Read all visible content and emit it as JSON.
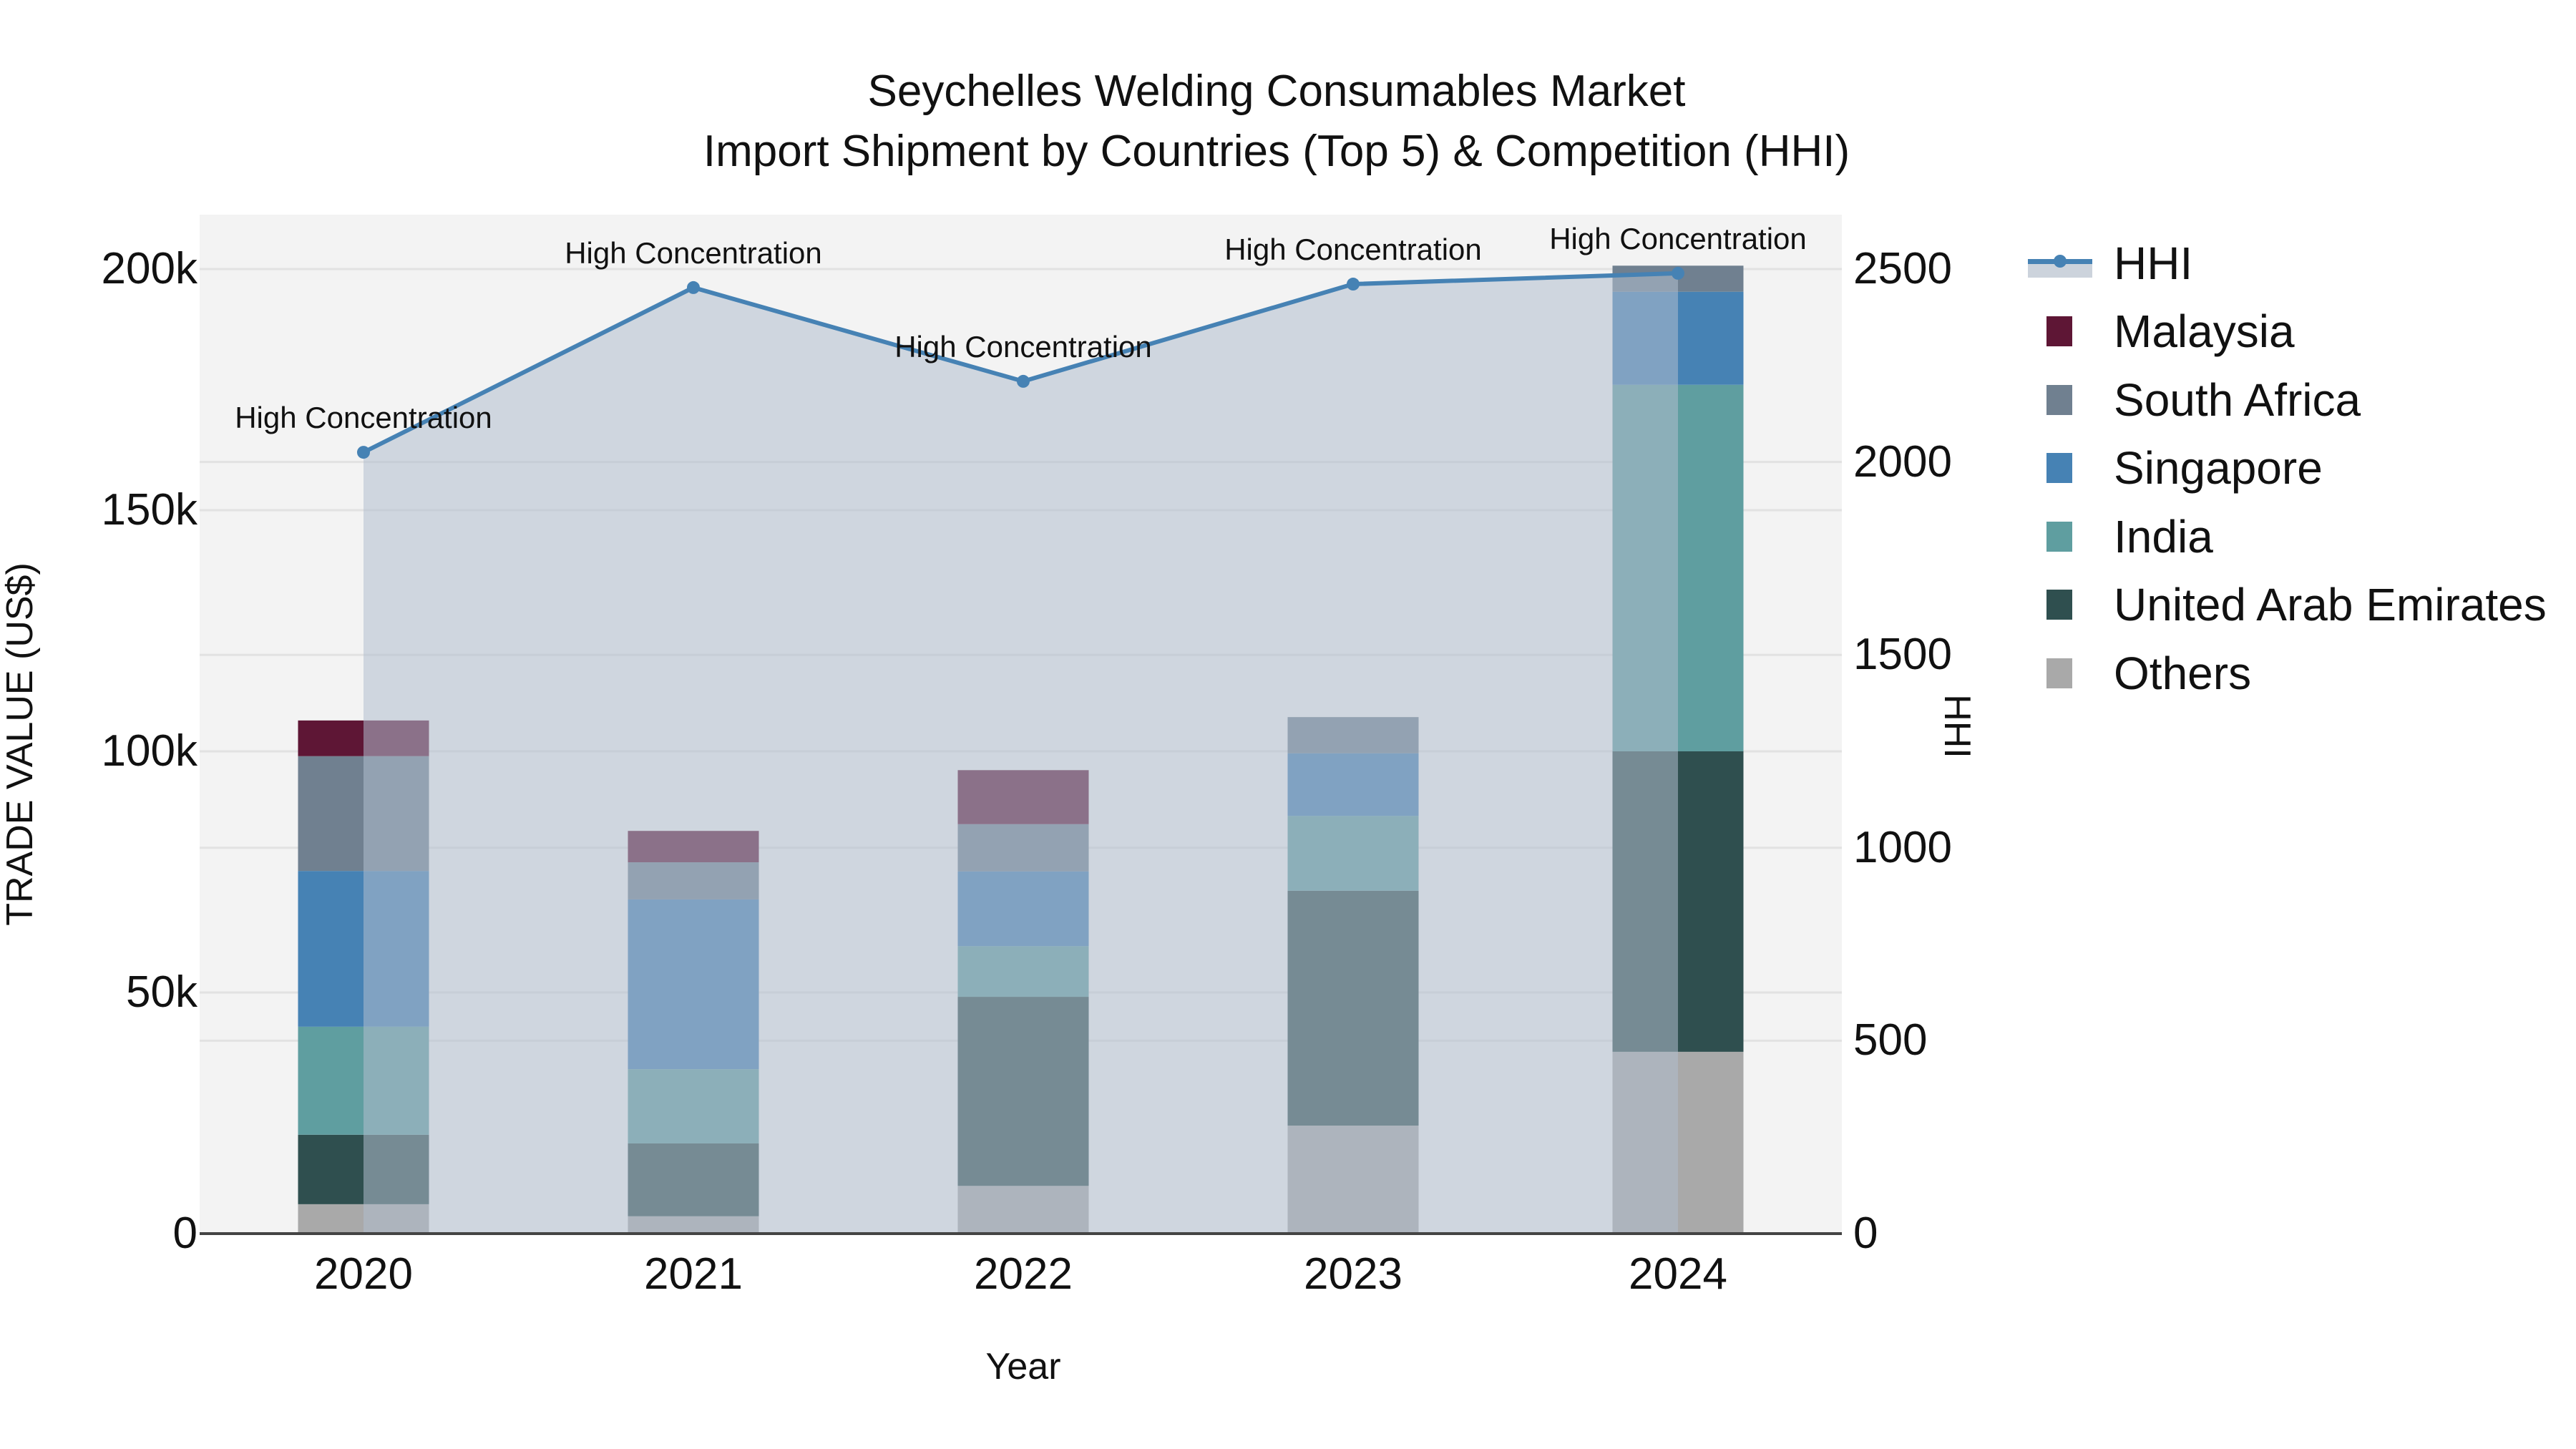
{
  "title": {
    "line1": "Seychelles Welding Consumables Market",
    "line2": "Import Shipment by Countries (Top 5) & Competition (HHI)"
  },
  "axes": {
    "x_label": "Year",
    "y_label": "TRADE VALUE (US$)",
    "y2_label": "HHI",
    "y_ticks": [
      "0",
      "50k",
      "100k",
      "150k",
      "200k"
    ],
    "y_tick_values": [
      0,
      50000,
      100000,
      150000,
      200000
    ],
    "y2_ticks": [
      "0",
      "500",
      "1000",
      "1500",
      "2000",
      "2500"
    ],
    "y2_tick_values": [
      0,
      500,
      1000,
      1500,
      2000,
      2500
    ],
    "x_ticks": [
      "2020",
      "2021",
      "2022",
      "2023",
      "2024"
    ]
  },
  "legend": {
    "items": [
      {
        "label": "HHI",
        "type": "line",
        "color": "#4682b4"
      },
      {
        "label": "Malaysia",
        "type": "bar",
        "color": "#5e1635"
      },
      {
        "label": "South Africa",
        "type": "bar",
        "color": "#708090"
      },
      {
        "label": "Singapore",
        "type": "bar",
        "color": "#4682b4"
      },
      {
        "label": "India",
        "type": "bar",
        "color": "#5f9ea0"
      },
      {
        "label": "United Arab Emirates",
        "type": "bar",
        "color": "#2f4f4f"
      },
      {
        "label": "Others",
        "type": "bar",
        "color": "#a9a9a9"
      }
    ]
  },
  "annotations": [
    {
      "year": "2020",
      "text": "High Concentration"
    },
    {
      "year": "2021",
      "text": "High Concentration"
    },
    {
      "year": "2022",
      "text": "High Concentration"
    },
    {
      "year": "2023",
      "text": "High Concentration"
    },
    {
      "year": "2024",
      "text": "High Concentration"
    }
  ],
  "colors": {
    "plot_bg": "#f3f3f3",
    "grid": "#e2e2e2",
    "hhi_line": "#4682b4",
    "hhi_fill": "rgba(176,190,205,0.55)",
    "axis_line": "#444444"
  },
  "chart_data": {
    "type": "bar",
    "subtype": "stacked bar with line overlay (secondary axis)",
    "title": "Seychelles Welding Consumables Market — Import Shipment by Countries (Top 5) & Competition (HHI)",
    "xlabel": "Year",
    "ylabel": "TRADE VALUE (US$)",
    "y2label": "HHI",
    "categories": [
      "2020",
      "2021",
      "2022",
      "2023",
      "2024"
    ],
    "ylim": [
      0,
      211000
    ],
    "y2lim": [
      0,
      2637
    ],
    "grid": true,
    "legend_position": "right",
    "stack_order_bottom_to_top": [
      "Others",
      "United Arab Emirates",
      "India",
      "Singapore",
      "South Africa",
      "Malaysia"
    ],
    "series": [
      {
        "name": "Others",
        "color": "#a9a9a9",
        "values": [
          6100,
          3600,
          9900,
          22400,
          37700
        ]
      },
      {
        "name": "United Arab Emirates",
        "color": "#2f4f4f",
        "values": [
          14400,
          15100,
          39200,
          48700,
          62300
        ]
      },
      {
        "name": "India",
        "color": "#5f9ea0",
        "values": [
          22400,
          15400,
          10500,
          15500,
          76000
        ]
      },
      {
        "name": "Singapore",
        "color": "#4682b4",
        "values": [
          32300,
          35200,
          15500,
          13000,
          19300
        ]
      },
      {
        "name": "South Africa",
        "color": "#708090",
        "values": [
          23800,
          7700,
          9800,
          7500,
          5400
        ]
      },
      {
        "name": "Malaysia",
        "color": "#5e1635",
        "values": [
          7400,
          6500,
          11200,
          0,
          0
        ]
      }
    ],
    "totals": [
      106400,
      83500,
      96100,
      107100,
      200700
    ],
    "line_series": {
      "name": "HHI",
      "axis": "y2",
      "color": "#4682b4",
      "fill": "tozeroy",
      "values": [
        2025,
        2452,
        2209,
        2461,
        2489
      ],
      "annotations": [
        "High Concentration",
        "High Concentration",
        "High Concentration",
        "High Concentration",
        "High Concentration"
      ]
    }
  }
}
